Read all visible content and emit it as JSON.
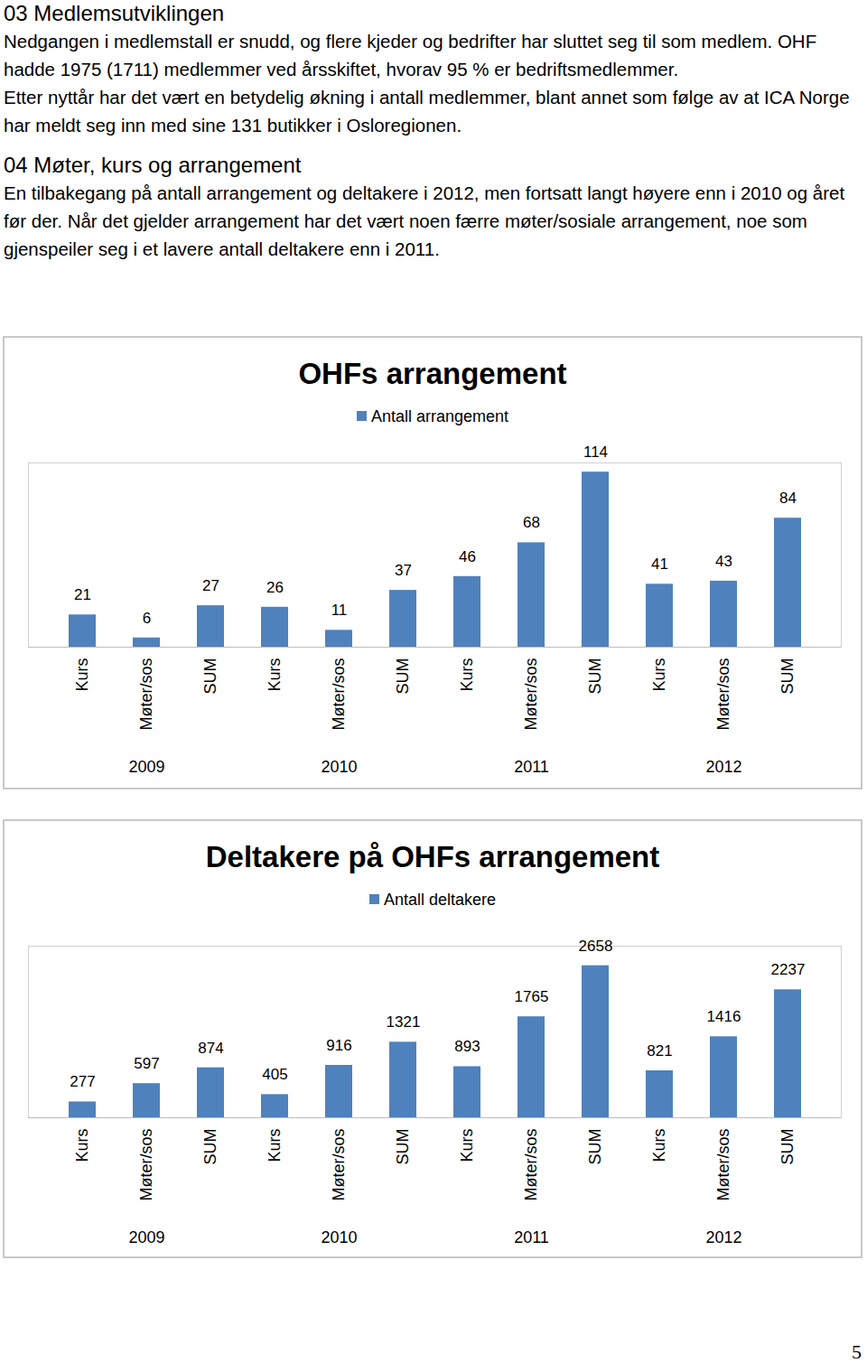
{
  "document": {
    "sections": [
      {
        "heading": "03 Medlemsutviklingen",
        "paragraphs": [
          "Nedgangen i medlemstall er snudd, og flere kjeder og bedrifter har sluttet seg til som medlem. OHF hadde 1975 (1711) medlemmer ved årsskiftet, hvorav 95 % er bedriftsmedlemmer.",
          "Etter nyttår har det vært en betydelig økning i antall medlemmer, blant annet som følge av at ICA Norge har meldt seg inn med sine 131 butikker i Osloregionen."
        ]
      },
      {
        "heading": "04 Møter, kurs og arrangement",
        "paragraphs": [
          "En tilbakegang på antall arrangement og deltakere i 2012, men fortsatt langt høyere enn i 2010 og året før der. Når det gjelder arrangement har det vært noen færre møter/sosiale arrangement, noe som gjenspeiler seg i et lavere antall deltakere enn i 2011."
        ]
      }
    ],
    "page_number": "5"
  },
  "chart_data": [
    {
      "type": "bar",
      "title": "OHFs arrangement",
      "categories": [
        "Kurs",
        "Møter/sos",
        "SUM",
        "Kurs",
        "Møter/sos",
        "SUM",
        "Kurs",
        "Møter/sos",
        "SUM",
        "Kurs",
        "Møter/sos",
        "SUM"
      ],
      "groups": [
        "2009",
        "2010",
        "2011",
        "2012"
      ],
      "series": [
        {
          "name": "Antall arrangement",
          "color": "#4f81bd",
          "values": [
            21,
            6,
            27,
            26,
            11,
            37,
            46,
            68,
            114,
            41,
            43,
            84
          ]
        }
      ],
      "ylim": [
        0,
        120
      ],
      "data_labels": true,
      "tick_labels": "x"
    },
    {
      "type": "bar",
      "title": "Deltakere på OHFs arrangement",
      "categories": [
        "Kurs",
        "Møter/sos",
        "SUM",
        "Kurs",
        "Møter/sos",
        "SUM",
        "Kurs",
        "Møter/sos",
        "SUM",
        "Kurs",
        "Møter/sos",
        "SUM"
      ],
      "groups": [
        "2009",
        "2010",
        "2011",
        "2012"
      ],
      "series": [
        {
          "name": "Antall deltakere",
          "color": "#4f81bd",
          "values": [
            277,
            597,
            874,
            405,
            916,
            1321,
            893,
            1765,
            2658,
            821,
            1416,
            2237
          ]
        }
      ],
      "ylim": [
        0,
        3000
      ],
      "data_labels": true,
      "tick_labels": "x"
    }
  ]
}
